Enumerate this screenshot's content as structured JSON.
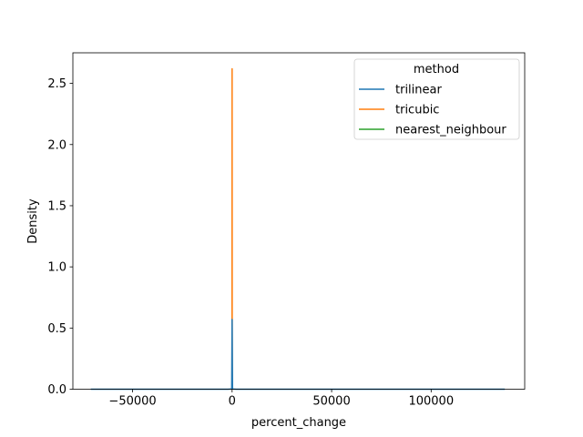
{
  "chart_data": {
    "type": "line",
    "title": "",
    "xlabel": "percent_change",
    "ylabel": "Density",
    "xlim": [
      -80000,
      147000
    ],
    "ylim": [
      0,
      2.75
    ],
    "x_ticks": [
      -50000,
      0,
      50000,
      100000
    ],
    "x_tick_labels": [
      "−50000",
      "0",
      "50000",
      "100000"
    ],
    "y_ticks": [
      0.0,
      0.5,
      1.0,
      1.5,
      2.0,
      2.5
    ],
    "y_tick_labels": [
      "0.0",
      "0.5",
      "1.0",
      "1.5",
      "2.0",
      "2.5"
    ],
    "grid": false,
    "legend": {
      "title": "method",
      "placement": "top-right"
    },
    "series": [
      {
        "name": "trilinear",
        "color": "#1f77b4",
        "points": [
          [
            -71000,
            0
          ],
          [
            -2000,
            0
          ],
          [
            -200,
            0.002
          ],
          [
            0,
            0.57
          ],
          [
            200,
            0.002
          ],
          [
            2000,
            0
          ],
          [
            137000,
            0
          ]
        ]
      },
      {
        "name": "tricubic",
        "color": "#ff7f0e",
        "points": [
          [
            -300,
            0
          ],
          [
            -40,
            0.001
          ],
          [
            0,
            2.62
          ],
          [
            40,
            0.001
          ],
          [
            300,
            0
          ]
        ]
      },
      {
        "name": "nearest_neighbour",
        "color": "#2ca02c",
        "points": []
      }
    ]
  }
}
